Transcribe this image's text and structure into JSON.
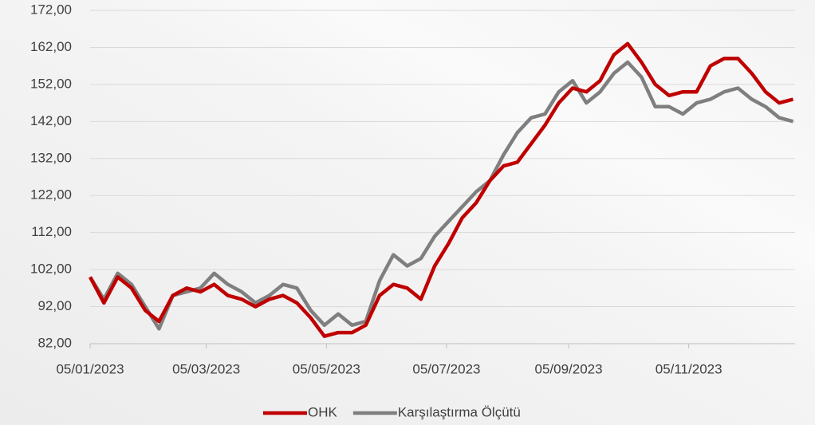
{
  "chart_data": {
    "type": "line",
    "x": [
      "05/01/2023",
      "12/01/2023",
      "19/01/2023",
      "26/01/2023",
      "02/02/2023",
      "09/02/2023",
      "16/02/2023",
      "23/02/2023",
      "02/03/2023",
      "09/03/2023",
      "16/03/2023",
      "23/03/2023",
      "30/03/2023",
      "06/04/2023",
      "13/04/2023",
      "20/04/2023",
      "27/04/2023",
      "04/05/2023",
      "11/05/2023",
      "18/05/2023",
      "25/05/2023",
      "01/06/2023",
      "08/06/2023",
      "15/06/2023",
      "22/06/2023",
      "29/06/2023",
      "06/07/2023",
      "13/07/2023",
      "20/07/2023",
      "27/07/2023",
      "03/08/2023",
      "10/08/2023",
      "17/08/2023",
      "24/08/2023",
      "31/08/2023",
      "07/09/2023",
      "14/09/2023",
      "21/09/2023",
      "28/09/2023",
      "05/10/2023",
      "12/10/2023",
      "19/10/2023",
      "26/10/2023",
      "02/11/2023",
      "09/11/2023",
      "16/11/2023",
      "23/11/2023",
      "30/11/2023",
      "07/12/2023",
      "14/12/2023",
      "21/12/2023",
      "28/12/2023"
    ],
    "series": [
      {
        "name": "OHK",
        "color": "#c00000",
        "values": [
          100,
          93,
          100,
          97,
          91,
          88,
          95,
          97,
          96,
          98,
          95,
          94,
          92,
          94,
          95,
          93,
          89,
          84,
          85,
          85,
          87,
          95,
          98,
          97,
          94,
          103,
          109,
          116,
          120,
          126,
          130,
          131,
          136,
          141,
          147,
          151,
          150,
          153,
          160,
          163,
          158,
          152,
          149,
          150,
          150,
          157,
          159,
          159,
          155,
          150,
          147,
          148
        ]
      },
      {
        "name": "Karşılaştırma Ölçütü",
        "color": "#7f7f7f",
        "values": [
          100,
          94,
          101,
          98,
          92,
          86,
          95,
          96,
          97,
          101,
          98,
          96,
          93,
          95,
          98,
          97,
          91,
          87,
          90,
          87,
          88,
          99,
          106,
          103,
          105,
          111,
          115,
          119,
          123,
          126,
          133,
          139,
          143,
          144,
          150,
          153,
          147,
          150,
          155,
          158,
          154,
          146,
          146,
          144,
          147,
          148,
          150,
          151,
          148,
          146,
          143,
          142
        ]
      }
    ],
    "xlim": [
      "05/01/2023",
      "29/12/2023"
    ],
    "xticks": [
      "05/01/2023",
      "05/03/2023",
      "05/05/2023",
      "05/07/2023",
      "05/09/2023",
      "05/11/2023"
    ],
    "ylim": [
      82,
      172
    ],
    "yticks": [
      {
        "value": 82,
        "label": "82,00"
      },
      {
        "value": 92,
        "label": "92,00"
      },
      {
        "value": 102,
        "label": "102,00"
      },
      {
        "value": 112,
        "label": "112,00"
      },
      {
        "value": 122,
        "label": "122,00"
      },
      {
        "value": 132,
        "label": "132,00"
      },
      {
        "value": 142,
        "label": "142,00"
      },
      {
        "value": 152,
        "label": "152,00"
      },
      {
        "value": 162,
        "label": "162,00"
      },
      {
        "value": 172,
        "label": "172,00"
      }
    ],
    "grid": true,
    "legend": "bottom"
  }
}
